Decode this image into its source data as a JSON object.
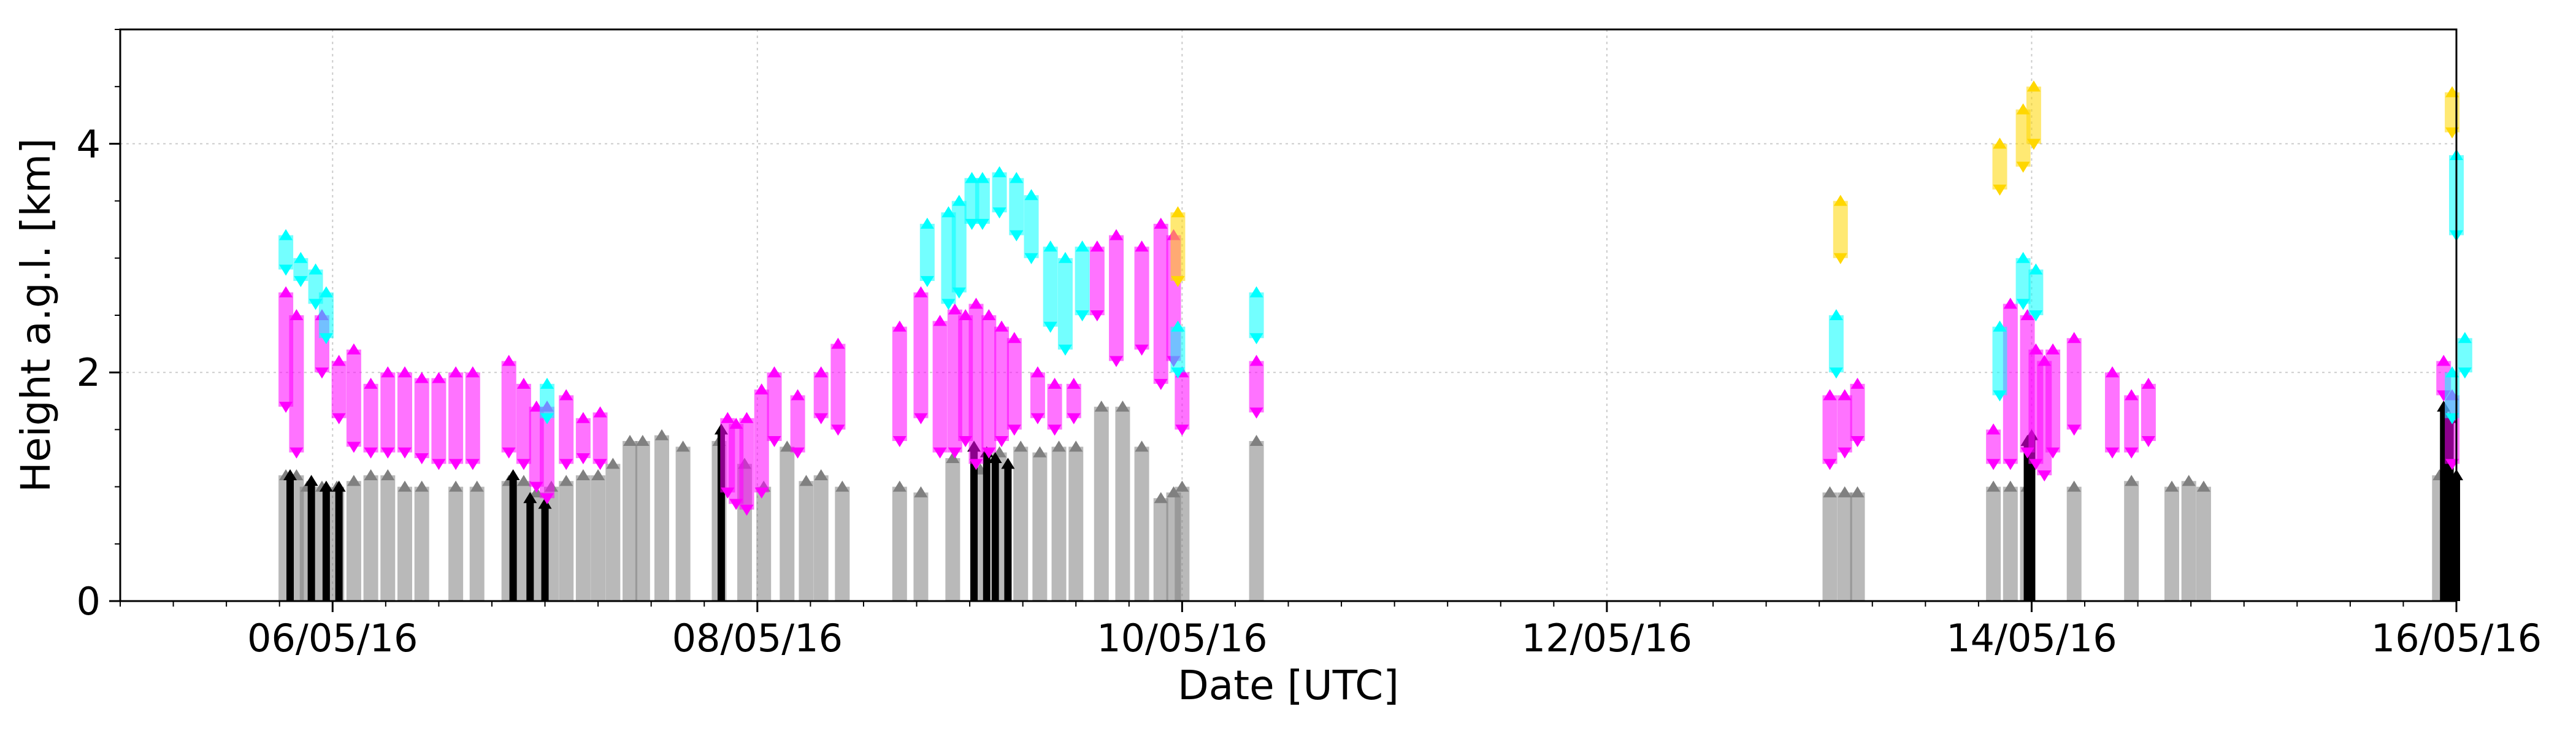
{
  "chart_data": {
    "type": "range-bar",
    "xlabel": "Date [UTC]",
    "ylabel": "Height a.g.l. [km]",
    "x_unit": "days since 05/05/2016 00:00 UTC",
    "xlim": [
      0.0,
      11.0
    ],
    "ylim": [
      0,
      5
    ],
    "xticks": [
      {
        "x": 1.0,
        "label": "06/05/16"
      },
      {
        "x": 3.0,
        "label": "08/05/16"
      },
      {
        "x": 5.0,
        "label": "10/05/16"
      },
      {
        "x": 7.0,
        "label": "12/05/16"
      },
      {
        "x": 9.0,
        "label": "14/05/16"
      },
      {
        "x": 11.0,
        "label": "16/05/16"
      }
    ],
    "yticks": [
      0,
      2,
      4
    ],
    "grid": true,
    "series": [
      {
        "name": "grey",
        "color": "#808080",
        "ranges": [
          [
            0.78,
            0,
            1.1
          ],
          [
            0.83,
            0,
            1.1
          ],
          [
            0.88,
            0,
            1.0
          ],
          [
            0.95,
            0,
            1.0
          ],
          [
            1.02,
            0,
            1.0
          ],
          [
            1.1,
            0,
            1.05
          ],
          [
            1.18,
            0,
            1.1
          ],
          [
            1.26,
            0,
            1.1
          ],
          [
            1.34,
            0,
            1.0
          ],
          [
            1.42,
            0,
            1.0
          ],
          [
            1.58,
            0,
            1.0
          ],
          [
            1.68,
            0,
            1.0
          ],
          [
            1.83,
            0,
            1.05
          ],
          [
            1.9,
            0,
            1.05
          ],
          [
            1.96,
            0,
            0.95
          ],
          [
            2.03,
            0,
            1.0
          ],
          [
            2.1,
            0,
            1.05
          ],
          [
            2.18,
            0,
            1.1
          ],
          [
            2.25,
            0,
            1.1
          ],
          [
            2.32,
            0,
            1.2
          ],
          [
            2.4,
            0,
            1.4
          ],
          [
            2.46,
            0,
            1.4
          ],
          [
            2.55,
            0,
            1.45
          ],
          [
            2.65,
            0,
            1.35
          ],
          [
            2.82,
            0,
            1.4
          ],
          [
            2.94,
            0,
            1.2
          ],
          [
            3.03,
            0,
            1.0
          ],
          [
            3.14,
            0,
            1.35
          ],
          [
            3.23,
            0,
            1.05
          ],
          [
            3.3,
            0,
            1.1
          ],
          [
            3.4,
            0,
            1.0
          ],
          [
            3.67,
            0,
            1.0
          ],
          [
            3.77,
            0,
            0.95
          ],
          [
            3.92,
            0,
            1.25
          ],
          [
            4.05,
            0,
            1.15
          ],
          [
            4.14,
            0,
            1.3
          ],
          [
            4.24,
            0,
            1.35
          ],
          [
            4.33,
            0,
            1.3
          ],
          [
            4.42,
            0,
            1.35
          ],
          [
            4.5,
            0,
            1.35
          ],
          [
            4.62,
            0,
            1.7
          ],
          [
            4.72,
            0,
            1.7
          ],
          [
            4.81,
            0,
            1.35
          ],
          [
            4.9,
            0,
            0.9
          ],
          [
            4.96,
            0,
            0.95
          ],
          [
            5.0,
            0,
            1.0
          ],
          [
            5.35,
            0,
            1.4
          ],
          [
            8.05,
            0,
            0.95
          ],
          [
            8.12,
            0,
            0.95
          ],
          [
            8.18,
            0,
            0.95
          ],
          [
            8.82,
            0,
            1.0
          ],
          [
            8.9,
            0,
            1.0
          ],
          [
            8.98,
            0,
            1.0
          ],
          [
            9.2,
            0,
            1.0
          ],
          [
            9.47,
            0,
            1.05
          ],
          [
            9.66,
            0,
            1.0
          ],
          [
            9.74,
            0,
            1.05
          ],
          [
            9.81,
            0,
            1.0
          ],
          [
            10.92,
            0,
            1.1
          ]
        ]
      },
      {
        "name": "black",
        "color": "#000000",
        "ranges": [
          [
            0.8,
            0,
            1.1
          ],
          [
            0.9,
            0,
            1.05
          ],
          [
            0.97,
            0,
            1.0
          ],
          [
            1.03,
            0,
            1.0
          ],
          [
            1.85,
            0,
            1.1
          ],
          [
            1.93,
            0,
            0.9
          ],
          [
            2.0,
            0,
            0.85
          ],
          [
            2.83,
            0,
            1.5
          ],
          [
            4.02,
            0,
            1.35
          ],
          [
            4.08,
            0,
            1.3
          ],
          [
            4.12,
            0,
            1.25
          ],
          [
            4.18,
            0,
            1.2
          ],
          [
            8.98,
            0,
            1.4
          ],
          [
            9.0,
            0,
            1.45
          ],
          [
            10.94,
            0,
            1.7
          ],
          [
            10.97,
            0,
            1.6
          ],
          [
            11.0,
            0,
            1.1
          ]
        ]
      },
      {
        "name": "magenta",
        "color": "#ff00ff",
        "ranges": [
          [
            0.78,
            1.7,
            2.7
          ],
          [
            0.83,
            1.3,
            2.5
          ],
          [
            0.95,
            2.0,
            2.5
          ],
          [
            1.03,
            1.6,
            2.1
          ],
          [
            1.1,
            1.35,
            2.2
          ],
          [
            1.18,
            1.3,
            1.9
          ],
          [
            1.26,
            1.3,
            2.0
          ],
          [
            1.34,
            1.3,
            2.0
          ],
          [
            1.42,
            1.25,
            1.95
          ],
          [
            1.5,
            1.2,
            1.95
          ],
          [
            1.58,
            1.2,
            2.0
          ],
          [
            1.66,
            1.2,
            2.0
          ],
          [
            1.83,
            1.3,
            2.1
          ],
          [
            1.9,
            1.2,
            1.9
          ],
          [
            1.96,
            1.0,
            1.7
          ],
          [
            2.01,
            0.9,
            1.7
          ],
          [
            2.1,
            1.2,
            1.8
          ],
          [
            2.18,
            1.25,
            1.6
          ],
          [
            2.26,
            1.2,
            1.65
          ],
          [
            2.86,
            0.95,
            1.6
          ],
          [
            2.9,
            0.85,
            1.55
          ],
          [
            2.95,
            0.8,
            1.6
          ],
          [
            3.02,
            0.95,
            1.85
          ],
          [
            3.08,
            1.4,
            2.0
          ],
          [
            3.19,
            1.3,
            1.8
          ],
          [
            3.3,
            1.6,
            2.0
          ],
          [
            3.38,
            1.5,
            2.25
          ],
          [
            3.67,
            1.4,
            2.4
          ],
          [
            3.77,
            1.6,
            2.7
          ],
          [
            3.86,
            1.3,
            2.45
          ],
          [
            3.93,
            1.3,
            2.55
          ],
          [
            3.98,
            1.4,
            2.5
          ],
          [
            4.03,
            1.2,
            2.6
          ],
          [
            4.09,
            1.3,
            2.5
          ],
          [
            4.15,
            1.4,
            2.4
          ],
          [
            4.21,
            1.5,
            2.3
          ],
          [
            4.32,
            1.6,
            2.0
          ],
          [
            4.4,
            1.5,
            1.9
          ],
          [
            4.49,
            1.6,
            1.9
          ],
          [
            4.6,
            2.5,
            3.1
          ],
          [
            4.69,
            2.1,
            3.2
          ],
          [
            4.81,
            2.2,
            3.1
          ],
          [
            4.9,
            1.9,
            3.3
          ],
          [
            4.96,
            2.1,
            3.2
          ],
          [
            5.0,
            1.5,
            2.0
          ],
          [
            5.35,
            1.65,
            2.1
          ],
          [
            8.05,
            1.2,
            1.8
          ],
          [
            8.12,
            1.3,
            1.8
          ],
          [
            8.18,
            1.4,
            1.9
          ],
          [
            8.82,
            1.2,
            1.5
          ],
          [
            8.9,
            1.2,
            2.6
          ],
          [
            8.98,
            1.3,
            2.5
          ],
          [
            9.02,
            1.2,
            2.2
          ],
          [
            9.06,
            1.1,
            2.1
          ],
          [
            9.1,
            1.3,
            2.2
          ],
          [
            9.2,
            1.5,
            2.3
          ],
          [
            9.38,
            1.3,
            2.0
          ],
          [
            9.47,
            1.3,
            1.8
          ],
          [
            9.55,
            1.4,
            1.9
          ],
          [
            10.94,
            1.8,
            2.1
          ],
          [
            10.98,
            1.2,
            1.8
          ]
        ]
      },
      {
        "name": "cyan",
        "color": "#00ffff",
        "ranges": [
          [
            0.78,
            2.9,
            3.2
          ],
          [
            0.85,
            2.8,
            3.0
          ],
          [
            0.92,
            2.6,
            2.9
          ],
          [
            0.97,
            2.3,
            2.7
          ],
          [
            2.01,
            1.6,
            1.9
          ],
          [
            3.8,
            2.8,
            3.3
          ],
          [
            3.9,
            2.6,
            3.4
          ],
          [
            3.95,
            2.7,
            3.5
          ],
          [
            4.01,
            3.3,
            3.7
          ],
          [
            4.06,
            3.3,
            3.7
          ],
          [
            4.14,
            3.4,
            3.75
          ],
          [
            4.22,
            3.2,
            3.7
          ],
          [
            4.29,
            3.0,
            3.55
          ],
          [
            4.38,
            2.4,
            3.1
          ],
          [
            4.45,
            2.2,
            3.0
          ],
          [
            4.53,
            2.5,
            3.1
          ],
          [
            4.98,
            2.0,
            2.4
          ],
          [
            5.35,
            2.3,
            2.7
          ],
          [
            8.08,
            2.0,
            2.5
          ],
          [
            8.85,
            1.8,
            2.4
          ],
          [
            8.96,
            2.6,
            3.0
          ],
          [
            9.02,
            2.5,
            2.9
          ],
          [
            10.98,
            1.6,
            2.0
          ],
          [
            11.0,
            3.2,
            3.9
          ],
          [
            11.04,
            2.0,
            2.3
          ]
        ]
      },
      {
        "name": "gold",
        "color": "#ffd700",
        "ranges": [
          [
            4.98,
            2.8,
            3.4
          ],
          [
            8.1,
            3.0,
            3.5
          ],
          [
            8.85,
            3.6,
            4.0
          ],
          [
            8.96,
            3.8,
            4.3
          ],
          [
            9.01,
            4.0,
            4.5
          ],
          [
            10.98,
            4.1,
            4.45
          ]
        ]
      }
    ]
  }
}
